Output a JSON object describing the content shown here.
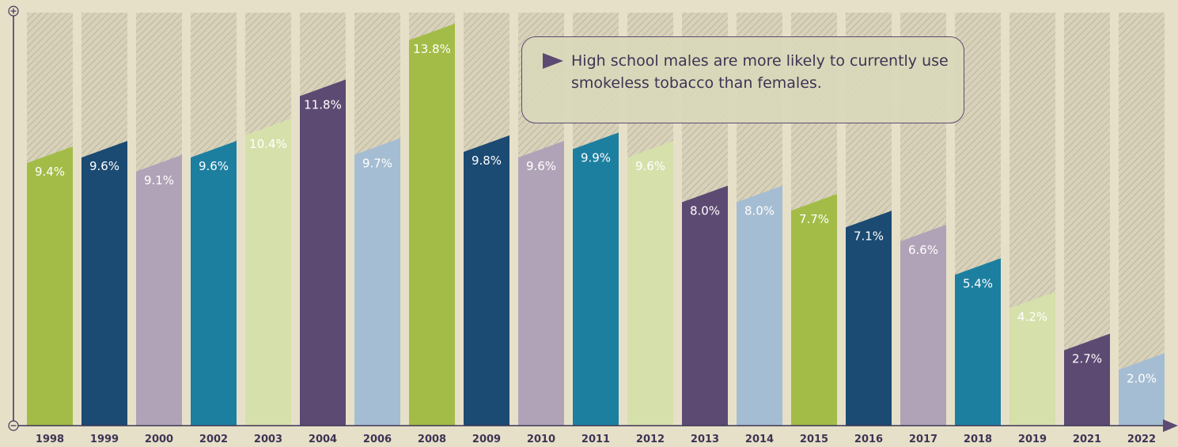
{
  "chart_data": {
    "type": "bar",
    "categories": [
      "1998",
      "1999",
      "2000",
      "2002",
      "2003",
      "2004",
      "2006",
      "2008",
      "2009",
      "2010",
      "2011",
      "2012",
      "2013",
      "2014",
      "2015",
      "2016",
      "2017",
      "2018",
      "2019",
      "2021",
      "2022"
    ],
    "values": [
      9.4,
      9.6,
      9.1,
      9.6,
      10.4,
      11.8,
      9.7,
      13.8,
      9.8,
      9.6,
      9.9,
      9.6,
      8.0,
      8.0,
      7.7,
      7.1,
      6.6,
      5.4,
      4.2,
      2.7,
      2.0
    ],
    "data_labels": [
      "9.4%",
      "9.6%",
      "9.1%",
      "9.6%",
      "10.4%",
      "11.8%",
      "9.7%",
      "13.8%",
      "9.8%",
      "9.6%",
      "9.9%",
      "9.6%",
      "8.0%",
      "8.0%",
      "7.7%",
      "7.1%",
      "6.6%",
      "5.4%",
      "4.2%",
      "2.7%",
      "2.0%"
    ],
    "title": "",
    "xlabel": "",
    "ylabel": "",
    "ylim": [
      0,
      15
    ],
    "grid": false,
    "legend": "none",
    "y_axis_symbols": {
      "top": "+",
      "bottom": "−"
    },
    "bar_colors": [
      "#a3bc47",
      "#1b4a72",
      "#b0a3b8",
      "#1d7fa0",
      "#d6e0ab",
      "#5d4a72",
      "#a5bdd2"
    ],
    "label_colors": [
      "#ffffff",
      "#ffffff",
      "#ffffff",
      "#ffffff",
      "#ffffff",
      "#ffffff",
      "#ffffff"
    ],
    "annotation": "High school males are more likely to currently use smokeless tobacco than females."
  }
}
